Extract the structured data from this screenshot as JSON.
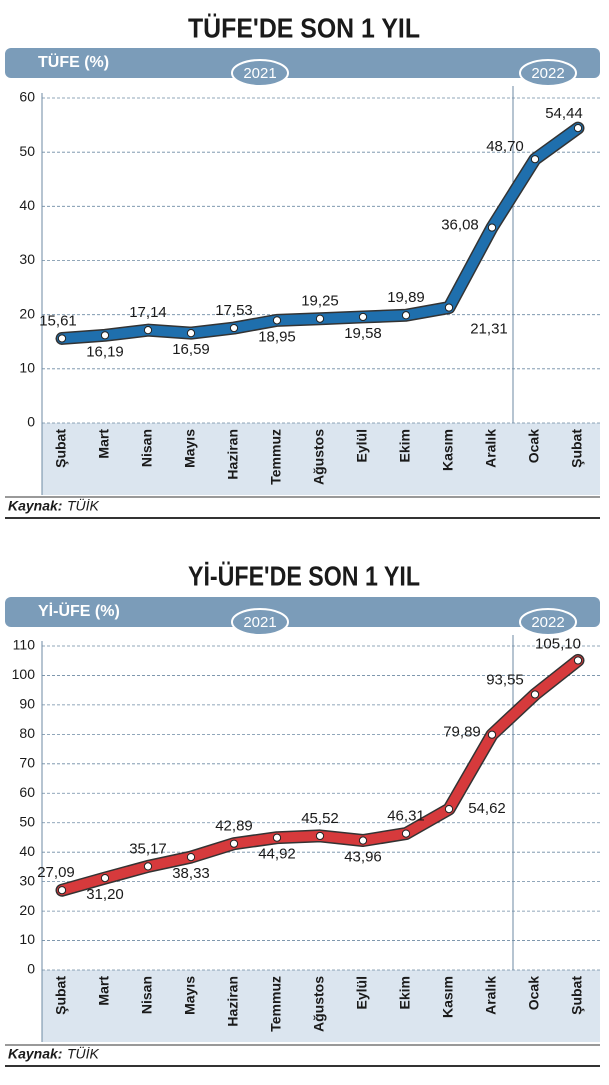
{
  "chart_data": [
    {
      "type": "line",
      "title": "TÜFE'DE SON 1 YIL",
      "y_axis_label": "TÜFE (%)",
      "period_labels": [
        "2021",
        "2022"
      ],
      "categories": [
        "Şubat",
        "Mart",
        "Nisan",
        "Mayıs",
        "Haziran",
        "Temmuz",
        "Ağustos",
        "Eylül",
        "Ekim",
        "Kasım",
        "Aralık",
        "Ocak",
        "Şubat"
      ],
      "series": [
        {
          "color": "#1f6fad",
          "values": [
            15.61,
            16.19,
            17.14,
            16.59,
            17.53,
            18.95,
            19.25,
            19.58,
            19.89,
            21.31,
            36.08,
            48.7,
            54.44
          ],
          "value_labels": [
            "15,61",
            "16,19",
            "17,14",
            "16,59",
            "17,53",
            "18,95",
            "19,25",
            "19,58",
            "19,89",
            "21,31",
            "36,08",
            "48,70",
            "54,44"
          ]
        }
      ],
      "ylim": [
        0,
        60
      ],
      "yticks": [
        0,
        10,
        20,
        30,
        40,
        50,
        60
      ],
      "grid": true,
      "source_label": "Kaynak:",
      "source": "TÜİK"
    },
    {
      "type": "line",
      "title": "Yİ-ÜFE'DE SON 1 YIL",
      "y_axis_label": "Yİ-ÜFE (%)",
      "period_labels": [
        "2021",
        "2022"
      ],
      "categories": [
        "Şubat",
        "Mart",
        "Nisan",
        "Mayıs",
        "Haziran",
        "Temmuz",
        "Ağustos",
        "Eylül",
        "Ekim",
        "Kasım",
        "Aralık",
        "Ocak",
        "Şubat"
      ],
      "series": [
        {
          "color": "#d63a3c",
          "values": [
            27.09,
            31.2,
            35.17,
            38.33,
            42.89,
            44.92,
            45.52,
            43.96,
            46.31,
            54.62,
            79.89,
            93.55,
            105.1
          ],
          "value_labels": [
            "27,09",
            "31,20",
            "35,17",
            "38,33",
            "42,89",
            "44,92",
            "45,52",
            "43,96",
            "46,31",
            "54,62",
            "79,89",
            "93,55",
            "105,10"
          ]
        }
      ],
      "ylim": [
        0,
        110
      ],
      "yticks": [
        0,
        10,
        20,
        30,
        40,
        50,
        60,
        70,
        80,
        90,
        100,
        110
      ],
      "grid": true,
      "source_label": "Kaynak:",
      "source": "TÜİK"
    }
  ]
}
